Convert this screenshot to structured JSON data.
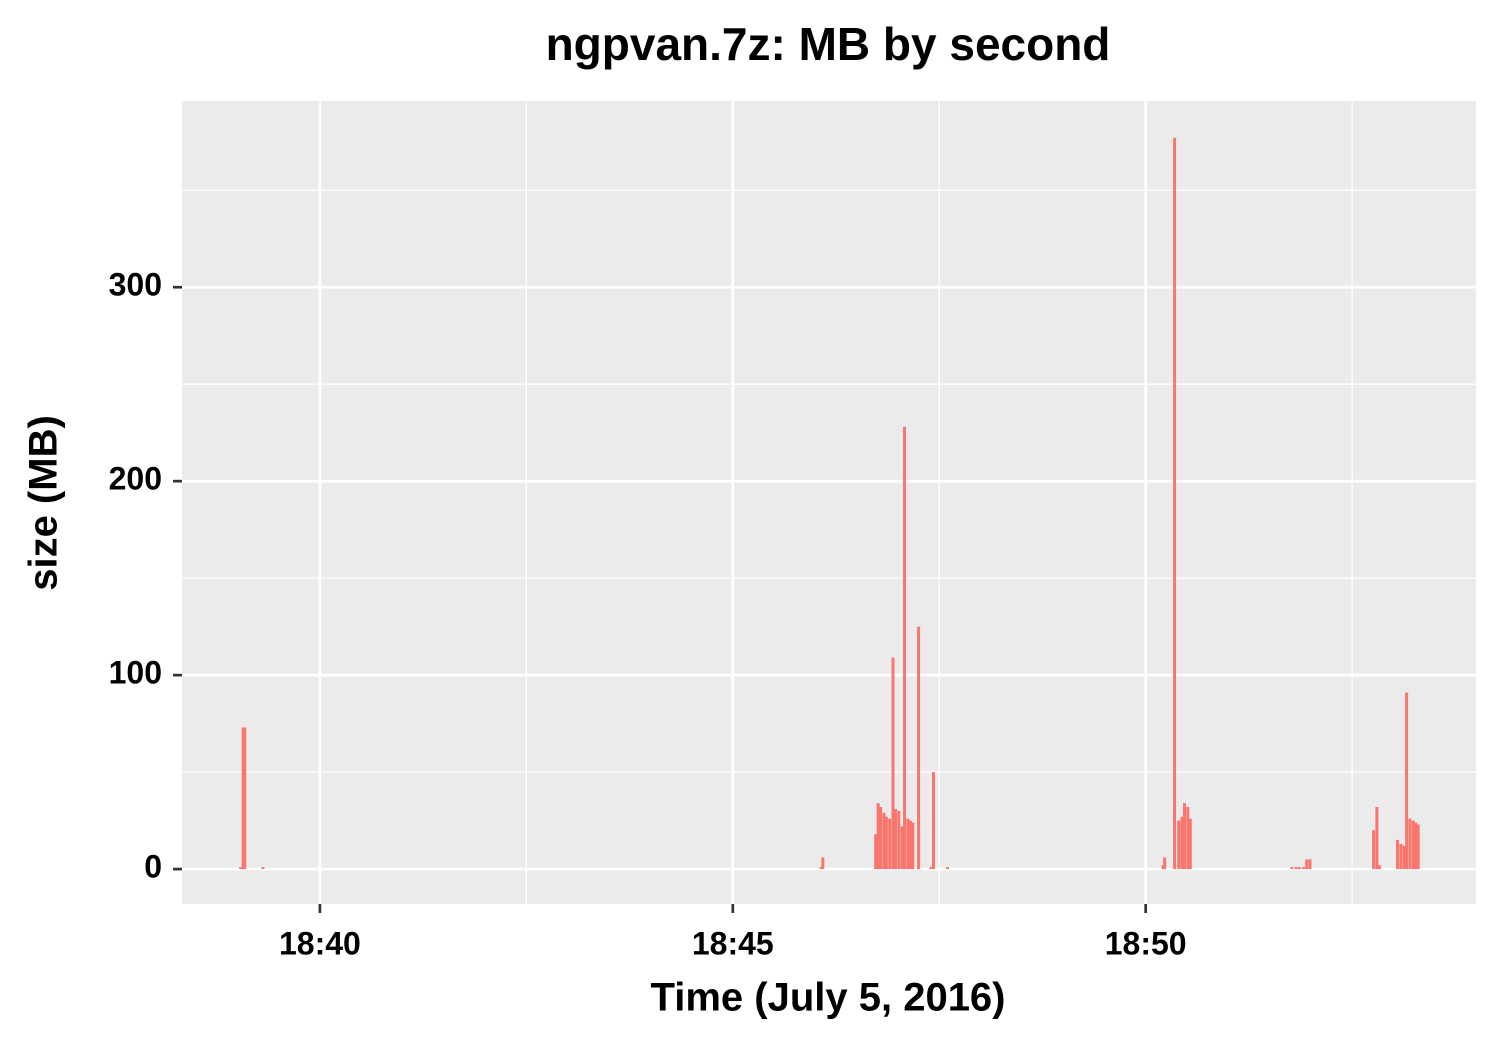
{
  "chart_data": {
    "type": "bar",
    "title": "ngpvan.7z: MB by second",
    "x_label": "Time (July 5, 2016)",
    "y_label": "size (MB)",
    "x": [
      39.04,
      39.07,
      39.09,
      39.31,
      46.07,
      46.09,
      46.73,
      46.76,
      46.79,
      46.83,
      46.86,
      46.9,
      46.94,
      46.97,
      47.01,
      47.05,
      47.08,
      47.12,
      47.15,
      47.18,
      47.25,
      47.4,
      47.43,
      47.6,
      50.21,
      50.23,
      50.35,
      50.4,
      50.44,
      50.47,
      50.51,
      50.54,
      51.77,
      51.82,
      51.86,
      51.91,
      51.95,
      51.99,
      52.76,
      52.8,
      52.83,
      53.05,
      53.09,
      53.13,
      53.16,
      53.2,
      53.24,
      53.27,
      53.3
    ],
    "values": [
      1,
      73,
      73,
      1,
      1,
      6,
      18,
      34,
      32,
      29,
      27,
      26,
      109,
      31,
      30,
      22,
      228,
      26,
      25,
      24,
      125,
      1,
      50,
      1,
      2,
      6,
      377,
      25,
      27,
      34,
      32,
      26,
      1,
      1,
      1,
      1,
      5,
      5,
      20,
      32,
      2,
      15,
      13,
      12,
      91,
      26,
      25,
      24,
      23
    ],
    "color": "#f8766d",
    "xlim": [
      38.33,
      54.0
    ],
    "xticks": [
      {
        "value": 40,
        "label": "18:40"
      },
      {
        "value": 45,
        "label": "18:45"
      },
      {
        "value": 50,
        "label": "18:50"
      }
    ],
    "ylim": [
      -18,
      396
    ],
    "yticks": [
      0,
      100,
      200,
      300
    ],
    "grid": true
  }
}
